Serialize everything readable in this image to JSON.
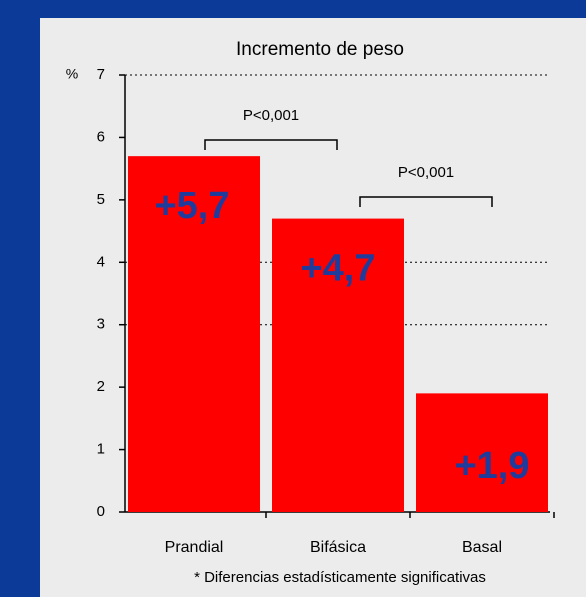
{
  "chart_data": {
    "type": "bar",
    "title": "Incremento de peso",
    "y_label": "%",
    "categories": [
      "Prandial",
      "Bifásica",
      "Basal"
    ],
    "values": [
      5.7,
      4.7,
      1.9
    ],
    "value_labels": [
      "+5,7",
      "+4,7",
      "+1,9"
    ],
    "color": "#ff0000",
    "label_color": "#1f3c9c",
    "ylim": [
      0,
      7
    ],
    "yticks": [
      0,
      1,
      2,
      3,
      4,
      5,
      6,
      7
    ],
    "grid_lines": [
      3,
      4,
      7
    ],
    "annotations": [
      "P<0,001",
      "P<0,001"
    ],
    "footnote": "* Diferencias estadísticamente significativas"
  }
}
